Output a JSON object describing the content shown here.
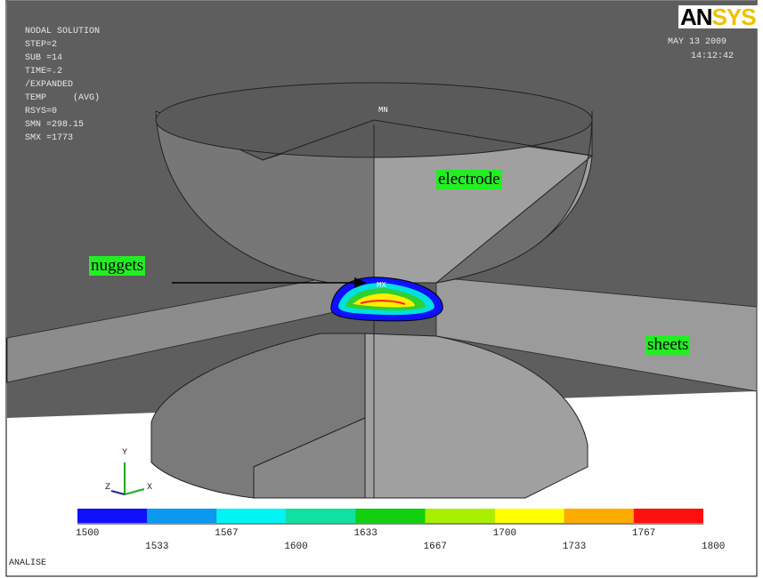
{
  "header": {
    "lines": [
      "NODAL SOLUTION",
      "STEP=2",
      "SUB =14",
      "TIME=.2",
      "/EXPANDED",
      "TEMP     (AVG)",
      "RSYS=0",
      "SMN =298.15",
      "SMX =1773"
    ],
    "date": "MAY 13 2009",
    "time": "14:12:42",
    "logo_black": "AN",
    "logo_yellow": "SYS"
  },
  "model": {
    "min_marker": "MN",
    "max_marker": "MX",
    "labels": {
      "electrode": "electrode",
      "nuggets": "nuggets",
      "sheets": "sheets"
    },
    "triad": {
      "x": "X",
      "y": "Y",
      "z": "Z"
    }
  },
  "legend": {
    "colors": [
      "#1010ff",
      "#0a98f0",
      "#00f4f4",
      "#10e0a0",
      "#10d010",
      "#a8f000",
      "#ffff00",
      "#ffaa00",
      "#ff1010"
    ],
    "labels": [
      "1500",
      "1533",
      "1567",
      "1600",
      "1633",
      "1667",
      "1700",
      "1733",
      "1767",
      "1800"
    ]
  },
  "footer": "ANALISE"
}
